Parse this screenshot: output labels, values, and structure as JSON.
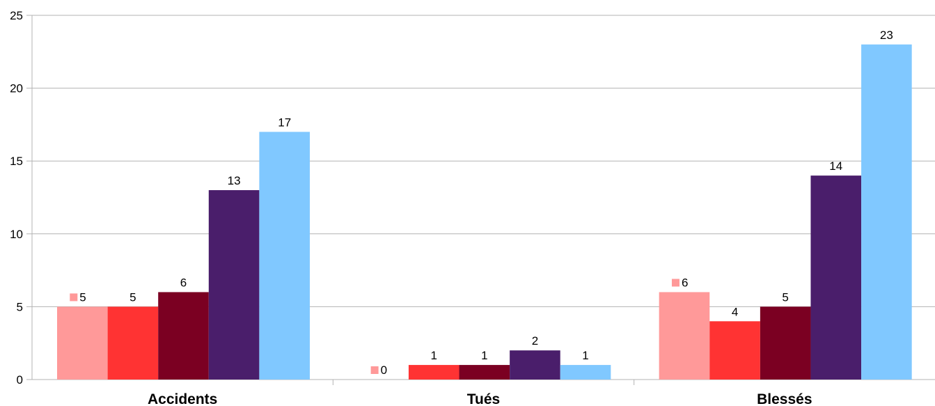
{
  "chart_data": {
    "type": "bar",
    "title": "",
    "xlabel": "",
    "ylabel": "",
    "categories": [
      "Accidents",
      "Tués",
      "Blessés"
    ],
    "series": [
      {
        "values": [
          5,
          0,
          6
        ],
        "color": "#ff9999",
        "legend_key_label": true
      },
      {
        "values": [
          5,
          1,
          4
        ],
        "color": "#ff3333"
      },
      {
        "values": [
          6,
          1,
          5
        ],
        "color": "#7b0022"
      },
      {
        "values": [
          13,
          2,
          14
        ],
        "color": "#4a1e6b"
      },
      {
        "values": [
          17,
          1,
          23
        ],
        "color": "#80c8ff"
      }
    ],
    "ylim": [
      0,
      25
    ],
    "yticks": [
      0,
      5,
      10,
      15,
      20,
      25
    ],
    "grid": true,
    "legend": "none"
  }
}
